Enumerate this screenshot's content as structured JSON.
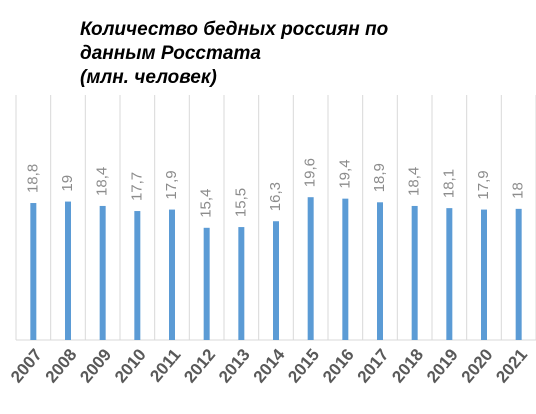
{
  "chart_data": {
    "type": "bar",
    "title": "Количество бедных россиян по данным Росстата",
    "subtitle": "(млн. человек)",
    "categories": [
      "2007",
      "2008",
      "2009",
      "2010",
      "2011",
      "2012",
      "2013",
      "2014",
      "2015",
      "2016",
      "2017",
      "2018",
      "2019",
      "2020",
      "2021"
    ],
    "values": [
      18.8,
      19,
      18.4,
      17.7,
      17.9,
      15.4,
      15.5,
      16.3,
      19.6,
      19.4,
      18.9,
      18.4,
      18.1,
      17.9,
      18
    ],
    "value_labels": [
      "18,8",
      "19",
      "18,4",
      "17,7",
      "17,9",
      "15,4",
      "15,5",
      "16,3",
      "19,6",
      "19,4",
      "18,9",
      "18,4",
      "18,1",
      "17,9",
      "18"
    ],
    "color": "#5b9bd5",
    "ylim": [
      0,
      35
    ],
    "grid": true
  }
}
